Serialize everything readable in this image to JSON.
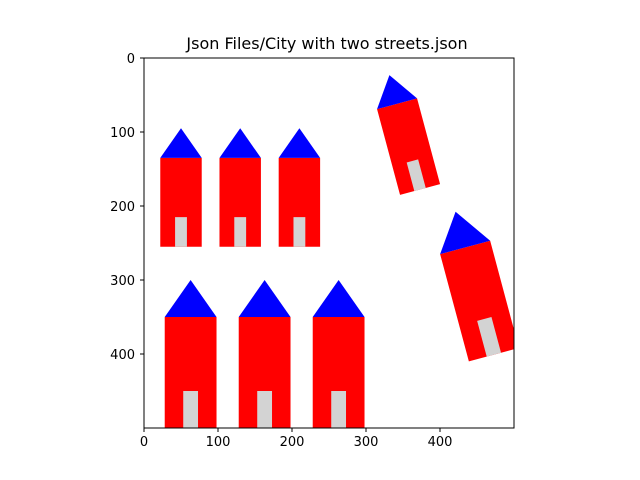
{
  "chart_data": {
    "type": "scatter",
    "title": "Json Files/City with two streets.json",
    "xlabel": "",
    "ylabel": "",
    "xlim": [
      0,
      500
    ],
    "ylim": [
      500,
      0
    ],
    "y_inverted": true,
    "grid": false,
    "x_ticks": [
      0,
      100,
      200,
      300,
      400
    ],
    "y_ticks": [
      0,
      100,
      200,
      300,
      400
    ],
    "colors": {
      "wall": "#ff0000",
      "roof": "#0000ff",
      "door": "#d3d3d3",
      "frame": "#000000"
    },
    "houses": [
      {
        "x": 22,
        "y": 255,
        "width": 56,
        "height": 120,
        "roof_height": 40,
        "angle": 0,
        "door_x": 42,
        "door_width": 16,
        "door_height": 40
      },
      {
        "x": 102,
        "y": 255,
        "width": 56,
        "height": 120,
        "roof_height": 40,
        "angle": 0,
        "door_x": 122,
        "door_width": 16,
        "door_height": 40
      },
      {
        "x": 182,
        "y": 255,
        "width": 56,
        "height": 120,
        "roof_height": 40,
        "angle": 0,
        "door_x": 202,
        "door_width": 16,
        "door_height": 40
      },
      {
        "x": 28,
        "y": 500,
        "width": 70,
        "height": 150,
        "roof_height": 50,
        "angle": 0,
        "door_x": 53,
        "door_width": 20,
        "door_height": 50
      },
      {
        "x": 128,
        "y": 500,
        "width": 70,
        "height": 150,
        "roof_height": 50,
        "angle": 0,
        "door_x": 153,
        "door_width": 20,
        "door_height": 50
      },
      {
        "x": 228,
        "y": 500,
        "width": 70,
        "height": 150,
        "roof_height": 50,
        "angle": 0,
        "door_x": 253,
        "door_width": 20,
        "door_height": 50
      },
      {
        "x": 346,
        "y": 185,
        "width": 56,
        "height": 120,
        "roof_height": 40,
        "angle": -15,
        "door_x": 366,
        "door_width": 16,
        "door_height": 40
      },
      {
        "x": 439,
        "y": 410,
        "width": 70,
        "height": 150,
        "roof_height": 50,
        "angle": -15,
        "door_x": 464,
        "door_width": 20,
        "door_height": 50
      }
    ]
  }
}
